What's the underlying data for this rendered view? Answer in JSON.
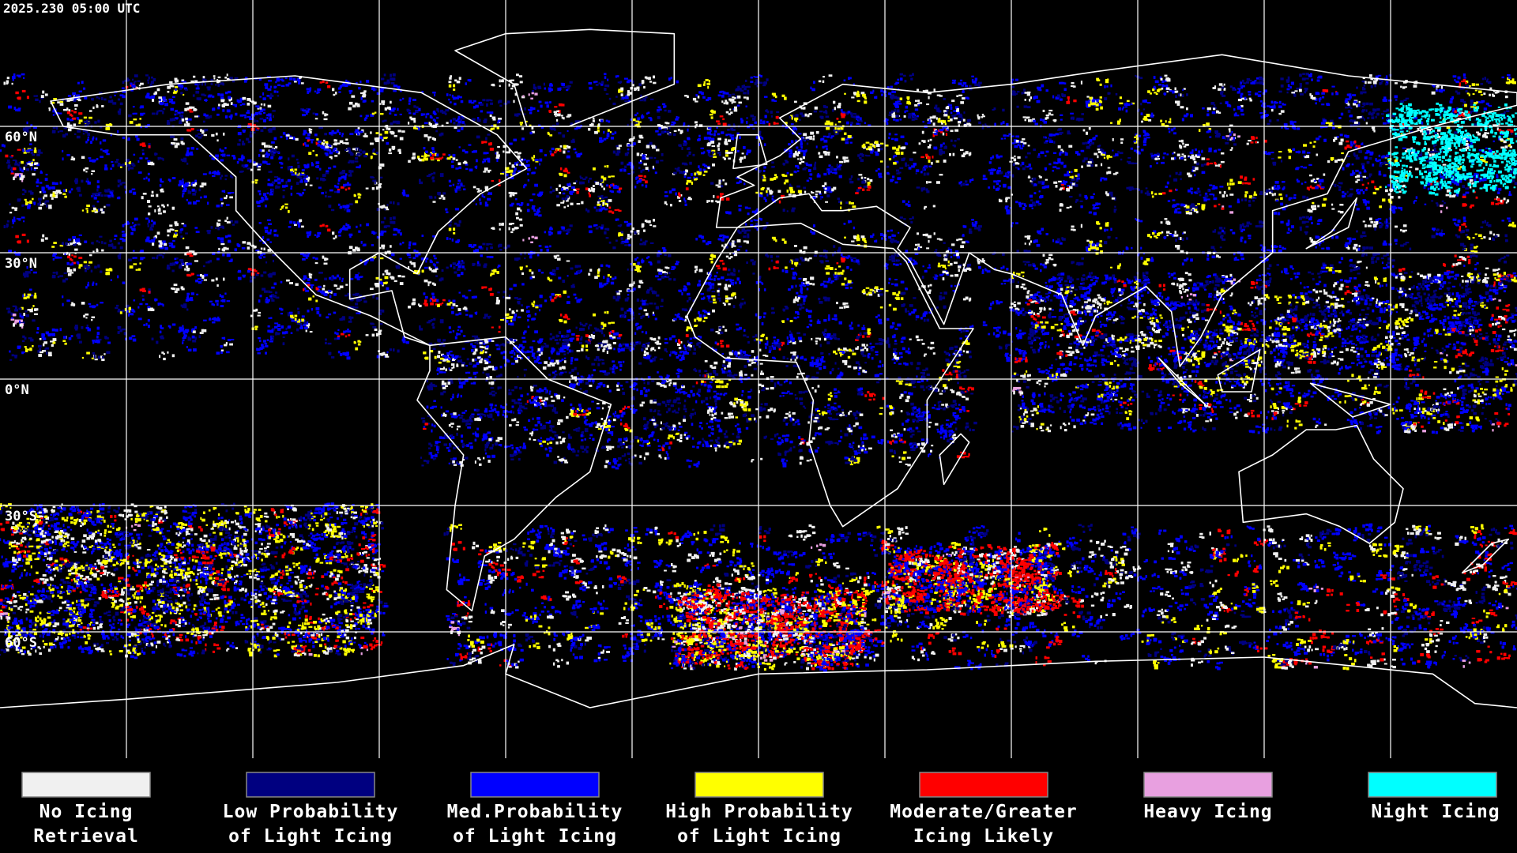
{
  "header": {
    "timestamp": "2025.230 05:00 UTC"
  },
  "map": {
    "lat_labels": [
      "60°N",
      "30°N",
      "0°N",
      "30°S",
      "60°S"
    ]
  },
  "legend": {
    "items": [
      {
        "label": [
          "No Icing",
          "Retrieval"
        ],
        "color": "#f0f0f0"
      },
      {
        "label": [
          "Low Probability",
          "of Light Icing"
        ],
        "color": "#000080"
      },
      {
        "label": [
          "Med.Probability",
          "of Light Icing"
        ],
        "color": "#0000ff"
      },
      {
        "label": [
          "High Probability",
          "of Light Icing"
        ],
        "color": "#ffff00"
      },
      {
        "label": [
          "Moderate/Greater",
          "Icing Likely"
        ],
        "color": "#ff0000"
      },
      {
        "label": [
          "Heavy Icing"
        ],
        "color": "#e8a0e0"
      },
      {
        "label": [
          "Night Icing"
        ],
        "color": "#00ffff"
      }
    ]
  }
}
